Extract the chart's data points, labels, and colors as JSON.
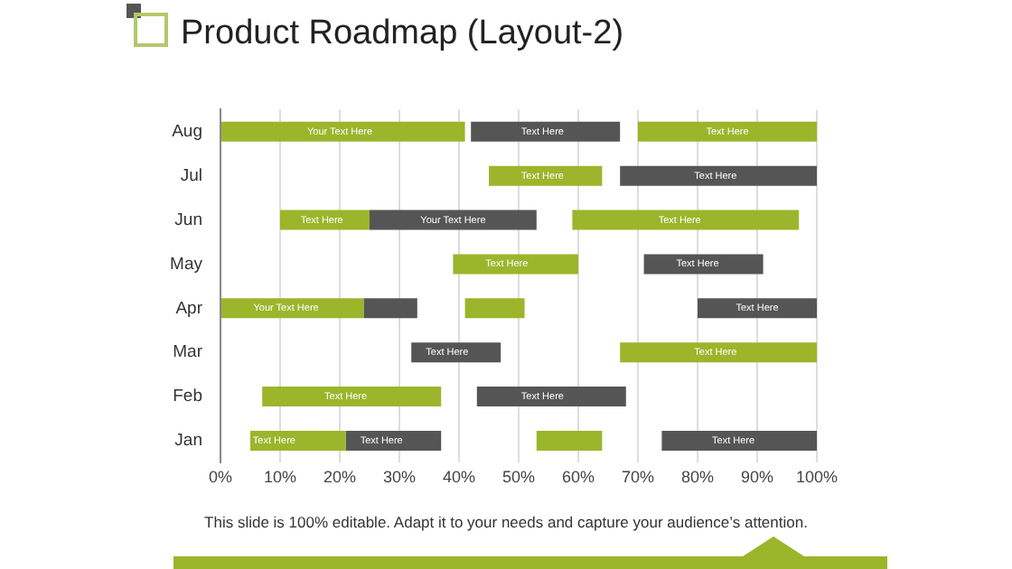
{
  "chart_data": {
    "type": "bar",
    "orientation": "horizontal",
    "title": "Product Roadmap (Layout-2)",
    "categories": [
      "Aug",
      "Jul",
      "Jun",
      "May",
      "Apr",
      "Mar",
      "Feb",
      "Jan"
    ],
    "series": [
      {
        "base": [
          0,
          45,
          10,
          39,
          0,
          32,
          7,
          5
        ],
        "values": [
          41,
          19,
          15,
          21,
          24,
          15,
          30,
          16
        ],
        "colors": [
          "#9cb52b",
          "#9cb52b",
          "#9cb52b",
          "#9cb52b",
          "#9cb52b",
          "#555555",
          "#9cb52b",
          "#9cb52b"
        ]
      },
      {
        "base": [
          42,
          67,
          25,
          71,
          24,
          67,
          43,
          21
        ],
        "values": [
          25,
          33,
          28,
          20,
          9,
          33,
          25,
          16
        ],
        "colors": [
          "#555555",
          "#555555",
          "#555555",
          "#555555",
          "#555555",
          "#9cb52b",
          "#555555",
          "#555555"
        ]
      },
      {
        "base": [
          70,
          null,
          59,
          null,
          41,
          null,
          null,
          53
        ],
        "values": [
          30,
          null,
          38,
          null,
          10,
          null,
          null,
          11
        ],
        "colors": [
          "#9cb52b",
          "#9cb52b",
          "#9cb52b",
          "#9cb52b",
          "#9cb52b",
          "#9cb52b",
          "#9cb52b",
          "#9cb52b"
        ]
      },
      {
        "base": [
          null,
          null,
          null,
          null,
          80,
          null,
          null,
          74
        ],
        "values": [
          null,
          null,
          null,
          null,
          20,
          null,
          null,
          26
        ],
        "colors": [
          "#555555",
          "#555555",
          "#555555",
          "#555555",
          "#555555",
          "#555555",
          "#555555",
          "#555555"
        ]
      }
    ],
    "xlim": [
      0,
      100
    ],
    "xticks": [
      {
        "value": 0,
        "label": "0%"
      },
      {
        "value": 10,
        "label": "10%"
      },
      {
        "value": 20,
        "label": "20%"
      },
      {
        "value": 30,
        "label": "30%"
      },
      {
        "value": 40,
        "label": "40%"
      },
      {
        "value": 50,
        "label": "50%"
      },
      {
        "value": 60,
        "label": "60%"
      },
      {
        "value": 70,
        "label": "70%"
      },
      {
        "value": 80,
        "label": "80%"
      },
      {
        "value": 90,
        "label": "90%"
      },
      {
        "value": 100,
        "label": "100%"
      }
    ],
    "grid": "x",
    "legend": false,
    "annotations": [
      {
        "text": "Your Text Here",
        "x": 20,
        "y": "Aug"
      },
      {
        "text": "Text Here",
        "x": 54,
        "y": "Aug"
      },
      {
        "text": "Text Here",
        "x": 85,
        "y": "Aug"
      },
      {
        "text": "Text Here",
        "x": 54,
        "y": "Jul"
      },
      {
        "text": "Text Here",
        "x": 83,
        "y": "Jul"
      },
      {
        "text": "Text Here",
        "x": 17,
        "y": "Jun"
      },
      {
        "text": "Your Text Here",
        "x": 39,
        "y": "Jun"
      },
      {
        "text": "Text Here",
        "x": 77,
        "y": "Jun"
      },
      {
        "text": "Text Here",
        "x": 48,
        "y": "May"
      },
      {
        "text": "Text Here",
        "x": 80,
        "y": "May"
      },
      {
        "text": "Your Text Here",
        "x": 11,
        "y": "Apr"
      },
      {
        "text": "Text Here",
        "x": 90,
        "y": "Apr"
      },
      {
        "text": "Text Here",
        "x": 38,
        "y": "Mar"
      },
      {
        "text": "Text Here",
        "x": 83,
        "y": "Mar"
      },
      {
        "text": "Text Here",
        "x": 21,
        "y": "Feb"
      },
      {
        "text": "Text Here",
        "x": 54,
        "y": "Feb"
      },
      {
        "text": "Text Here",
        "x": 9,
        "y": "Jan"
      },
      {
        "text": "Text Here",
        "x": 27,
        "y": "Jan"
      },
      {
        "text": "Text Here",
        "x": 86,
        "y": "Jan"
      },
      "This slide is 100% editable. Adapt it to your needs and capture your audience’s attention."
    ]
  }
}
